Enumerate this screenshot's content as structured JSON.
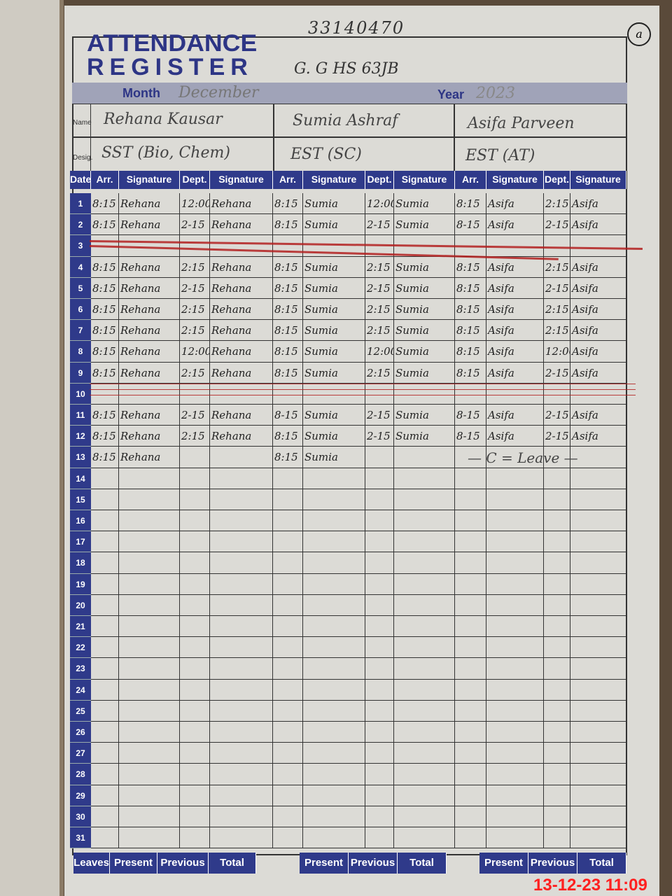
{
  "header": {
    "serial": "33140470",
    "page_mark": "a",
    "title_line1": "ATTENDANCE",
    "title_line2": "REGISTER",
    "school": "G. G HS 63JB",
    "month_label": "Month",
    "month": "December",
    "year_label": "Year",
    "year": "2023",
    "name_label": "Name",
    "desig_label": "Desig."
  },
  "teachers": [
    {
      "name": "Rehana Kausar",
      "designation": "SST (Bio, Chem)"
    },
    {
      "name": "Sumia Ashraf",
      "designation": "EST (SC)"
    },
    {
      "name": "Asifa Parveen",
      "designation": "EST (AT)"
    }
  ],
  "columns": {
    "date": "Date",
    "arr": "Arr.",
    "signature": "Signature",
    "dept": "Dept."
  },
  "rows": [
    [
      "8:15",
      "Rehana",
      "12:00",
      "Rehana",
      "8:15",
      "Sumia",
      "12:00",
      "Sumia",
      "8:15",
      "Asifa",
      "2:15",
      "Asifa"
    ],
    [
      "8:15",
      "Rehana",
      "2-15",
      "Rehana",
      "8:15",
      "Sumia",
      "2-15",
      "Sumia",
      "8-15",
      "Asifa",
      "2-15",
      "Asifa"
    ],
    [
      "",
      "",
      "",
      "",
      "",
      "",
      "",
      "",
      "",
      "",
      "",
      ""
    ],
    [
      "8:15",
      "Rehana",
      "2:15",
      "Rehana",
      "8:15",
      "Sumia",
      "2:15",
      "Sumia",
      "8:15",
      "Asifa",
      "2:15",
      "Asifa"
    ],
    [
      "8:15",
      "Rehana",
      "2-15",
      "Rehana",
      "8:15",
      "Sumia",
      "2-15",
      "Sumia",
      "8:15",
      "Asifa",
      "2-15",
      "Asifa"
    ],
    [
      "8:15",
      "Rehana",
      "2:15",
      "Rehana",
      "8:15",
      "Sumia",
      "2:15",
      "Sumia",
      "8:15",
      "Asifa",
      "2:15",
      "Asifa"
    ],
    [
      "8:15",
      "Rehana",
      "2:15",
      "Rehana",
      "8:15",
      "Sumia",
      "2:15",
      "Sumia",
      "8:15",
      "Asifa",
      "2:15",
      "Asifa"
    ],
    [
      "8:15",
      "Rehana",
      "12:00",
      "Rehana",
      "8:15",
      "Sumia",
      "12:00",
      "Sumia",
      "8:15",
      "Asifa",
      "12:00",
      "Asifa"
    ],
    [
      "8:15",
      "Rehana",
      "2:15",
      "Rehana",
      "8:15",
      "Sumia",
      "2:15",
      "Sumia",
      "8:15",
      "Asifa",
      "2-15",
      "Asifa"
    ],
    [
      "",
      "",
      "",
      "",
      "",
      "",
      "",
      "",
      "",
      "",
      "",
      ""
    ],
    [
      "8:15",
      "Rehana",
      "2-15",
      "Rehana",
      "8-15",
      "Sumia",
      "2-15",
      "Sumia",
      "8-15",
      "Asifa",
      "2-15",
      "Asifa"
    ],
    [
      "8:15",
      "Rehana",
      "2:15",
      "Rehana",
      "8:15",
      "Sumia",
      "2-15",
      "Sumia",
      "8-15",
      "Asifa",
      "2-15",
      "Asifa"
    ],
    [
      "8:15",
      "Rehana",
      "",
      "",
      "8:15",
      "Sumia",
      "",
      "",
      "",
      "",
      "",
      ""
    ]
  ],
  "notes": {
    "row13_teacher3": "— C = Leave —"
  },
  "footer": {
    "groups": [
      [
        "Leaves",
        "Present",
        "Previous",
        "Total"
      ],
      [
        "Present",
        "Previous",
        "Total"
      ],
      [
        "Present",
        "Previous",
        "Total"
      ]
    ]
  },
  "timestamp": "13-12-23  11:09",
  "colors": {
    "header_blue": "#2f3a8a",
    "strike_red": "#b32020"
  }
}
